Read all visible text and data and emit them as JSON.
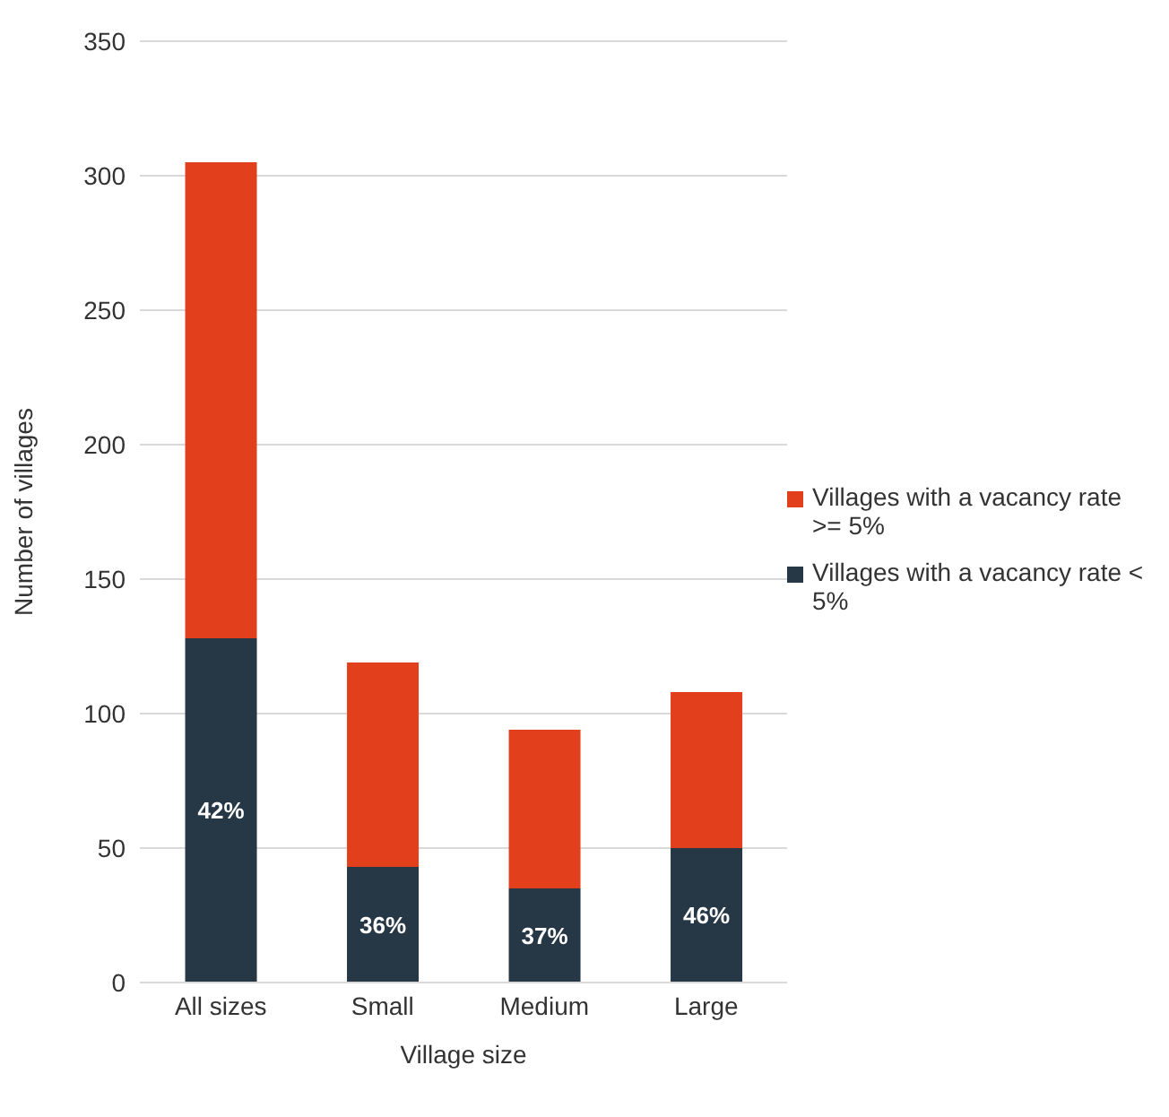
{
  "chart_data": {
    "type": "bar",
    "stacked": true,
    "xlabel": "Village size",
    "ylabel": "Number of villages",
    "categories": [
      "All sizes",
      "Small",
      "Medium",
      "Large"
    ],
    "series": [
      {
        "name": "Villages with a vacancy rate < 5%",
        "color": "#263746",
        "values": [
          128,
          43,
          35,
          50
        ]
      },
      {
        "name": "Villages with a vacancy rate >= 5%",
        "color": "#e2401c",
        "values": [
          177,
          76,
          59,
          58
        ]
      }
    ],
    "annotations": [
      "42%",
      "36%",
      "37%",
      "46%"
    ],
    "ylim": [
      0,
      350
    ],
    "yticks": [
      0,
      50,
      100,
      150,
      200,
      250,
      300,
      350
    ],
    "grid": "y",
    "legend": "right"
  }
}
